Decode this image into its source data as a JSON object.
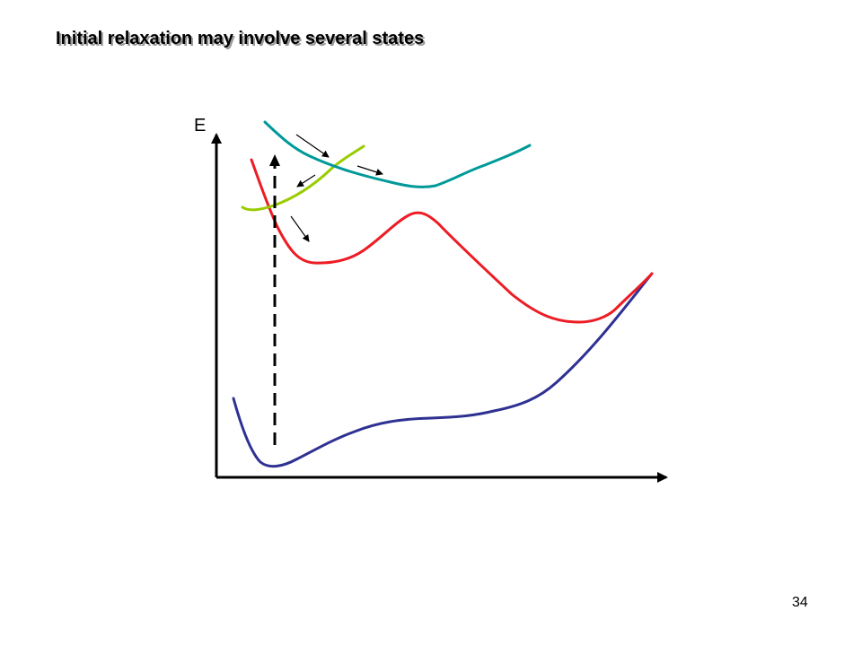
{
  "slide": {
    "title": "Initial relaxation may involve several states",
    "page_number": "34"
  },
  "diagram": {
    "axis_label_y": "E",
    "colors": {
      "ground_state": "#2e3192",
      "excited_state_red": "#ed1c24",
      "excited_state_green": "#99cc00",
      "excited_state_teal": "#009999",
      "axes": "#000000"
    },
    "curves": [
      "ground_state",
      "excited_state_red",
      "excited_state_green",
      "excited_state_teal"
    ],
    "excitation_arrow": "dashed-vertical",
    "relaxation_arrows": 4
  }
}
